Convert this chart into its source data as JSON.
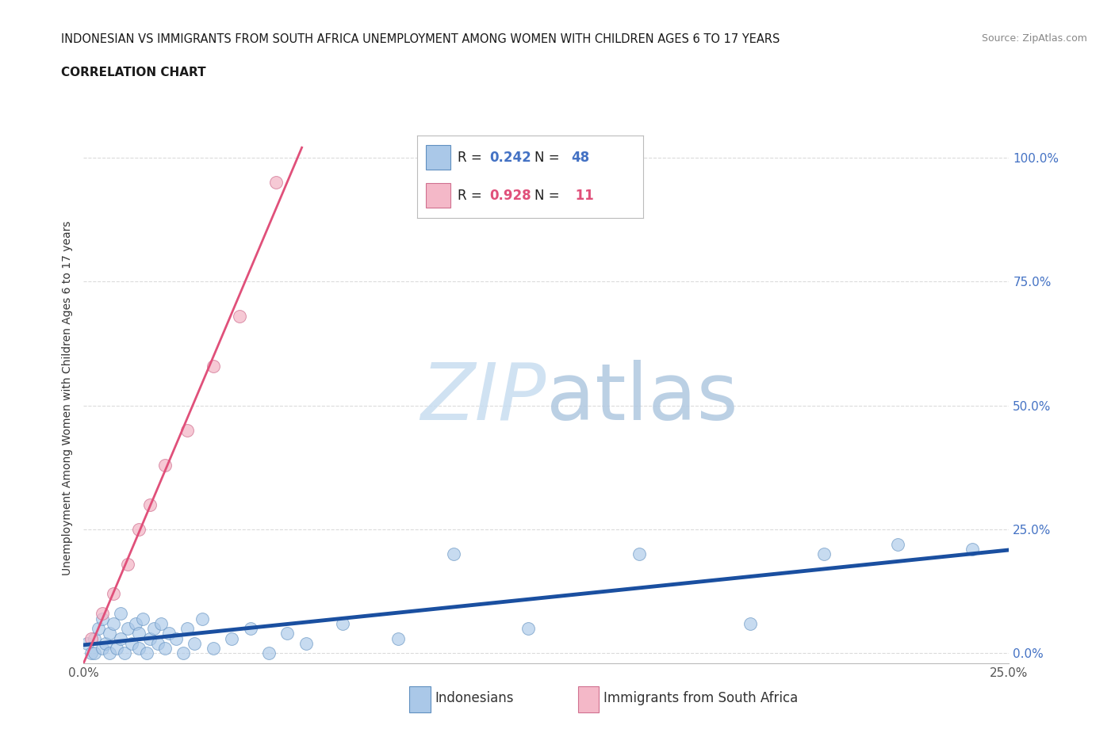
{
  "title_line1": "INDONESIAN VS IMMIGRANTS FROM SOUTH AFRICA UNEMPLOYMENT AMONG WOMEN WITH CHILDREN AGES 6 TO 17 YEARS",
  "title_line2": "CORRELATION CHART",
  "source": "Source: ZipAtlas.com",
  "ylabel_label": "Unemployment Among Women with Children Ages 6 to 17 years",
  "xlim": [
    0.0,
    0.25
  ],
  "ylim": [
    -0.02,
    1.05
  ],
  "yticks": [
    0.0,
    0.25,
    0.5,
    0.75,
    1.0
  ],
  "ytick_labels": [
    "0.0%",
    "25.0%",
    "50.0%",
    "75.0%",
    "100.0%"
  ],
  "xticks": [
    0.0,
    0.25
  ],
  "xtick_labels": [
    "0.0%",
    "25.0%"
  ],
  "blue_R": "0.242",
  "blue_N": "48",
  "pink_R": "0.928",
  "pink_N": "11",
  "blue_label": "Indonesians",
  "pink_label": "Immigrants from South Africa",
  "blue_scatter_color": "#aac8e8",
  "blue_edge_color": "#6090c0",
  "blue_line_color": "#1a4fa0",
  "pink_scatter_color": "#f4b8c8",
  "pink_edge_color": "#d07090",
  "pink_line_color": "#e0507a",
  "legend_box_color": "#aac8e8",
  "legend_pink_color": "#f4b8c8",
  "right_tick_color": "#4472c4",
  "watermark_color": "#d8e8f5",
  "grid_color": "#cccccc",
  "bg_color": "#ffffff",
  "title_color": "#1a1a1a",
  "source_color": "#888888",
  "ind_x": [
    0.001,
    0.002,
    0.003,
    0.003,
    0.004,
    0.005,
    0.005,
    0.006,
    0.007,
    0.007,
    0.008,
    0.009,
    0.01,
    0.01,
    0.011,
    0.012,
    0.013,
    0.014,
    0.015,
    0.015,
    0.016,
    0.017,
    0.018,
    0.019,
    0.02,
    0.021,
    0.022,
    0.023,
    0.025,
    0.027,
    0.028,
    0.03,
    0.032,
    0.035,
    0.04,
    0.045,
    0.05,
    0.055,
    0.06,
    0.07,
    0.085,
    0.1,
    0.12,
    0.15,
    0.18,
    0.2,
    0.22,
    0.24
  ],
  "ind_y": [
    0.02,
    0.0,
    0.03,
    0.0,
    0.05,
    0.01,
    0.07,
    0.02,
    0.04,
    0.0,
    0.06,
    0.01,
    0.03,
    0.08,
    0.0,
    0.05,
    0.02,
    0.06,
    0.01,
    0.04,
    0.07,
    0.0,
    0.03,
    0.05,
    0.02,
    0.06,
    0.01,
    0.04,
    0.03,
    0.0,
    0.05,
    0.02,
    0.07,
    0.01,
    0.03,
    0.05,
    0.0,
    0.04,
    0.02,
    0.06,
    0.03,
    0.2,
    0.05,
    0.2,
    0.06,
    0.2,
    0.22,
    0.21
  ],
  "sa_x": [
    0.002,
    0.005,
    0.008,
    0.012,
    0.015,
    0.018,
    0.022,
    0.028,
    0.035,
    0.042,
    0.052
  ],
  "sa_y": [
    0.03,
    0.08,
    0.12,
    0.18,
    0.25,
    0.3,
    0.38,
    0.45,
    0.58,
    0.68,
    0.95
  ]
}
